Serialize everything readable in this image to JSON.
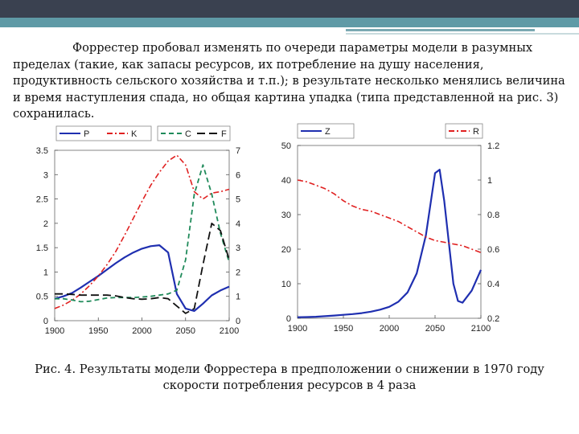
{
  "intro_text": "Форрестер пробовал изменять по очереди параметры модели в разумных пределах (такие, как запасы ресурсов, их потребление на душу населения, продуктивность сельского хозяйства и т.п.); в результате несколько менялись величина и время наступления спада, но общая картина упадка (типа представленной на рис. 3) сохранилась.",
  "caption_line1": "Рис. 4. Результаты модели Форрестера в предположении о снижении в 1970 году",
  "caption_line2": "скорости потребления ресурсов в 4 раза",
  "chart_data": [
    {
      "type": "line",
      "x": [
        1900,
        1910,
        1920,
        1930,
        1940,
        1950,
        1960,
        1970,
        1980,
        1990,
        2000,
        2010,
        2020,
        2030,
        2040,
        2050,
        2060,
        2070,
        2080,
        2090,
        2100
      ],
      "xlim": [
        1900,
        2100
      ],
      "x_ticks": [
        "1900",
        "1950",
        "2000",
        "2050",
        "2100"
      ],
      "ylim_left": [
        0,
        3.5
      ],
      "y_ticks_left": [
        "0",
        "0.5",
        "1",
        "1.5",
        "2",
        "2.5",
        "3",
        "3.5"
      ],
      "ylim_right": [
        0,
        7
      ],
      "y_ticks_right": [
        "0",
        "1",
        "2",
        "3",
        "4",
        "5",
        "6",
        "7"
      ],
      "legend": [
        {
          "name": "P",
          "color": "#1f2fb0",
          "dash": "solid"
        },
        {
          "name": "K",
          "color": "#e02020",
          "dash": "dashdot"
        },
        {
          "name": "C",
          "color": "#1f8a5a",
          "dash": "dashed"
        },
        {
          "name": "F",
          "color": "#111111",
          "dash": "longdash"
        }
      ],
      "series": [
        {
          "name": "P",
          "axis": "left",
          "color": "#1f2fb0",
          "dash": "solid",
          "width": 2.2,
          "values": [
            0.45,
            0.5,
            0.57,
            0.68,
            0.8,
            0.92,
            1.05,
            1.18,
            1.3,
            1.4,
            1.48,
            1.53,
            1.55,
            1.4,
            0.55,
            0.25,
            0.2,
            0.35,
            0.52,
            0.62,
            0.7
          ]
        },
        {
          "name": "K",
          "axis": "left",
          "color": "#e02020",
          "dash": "dashdot",
          "width": 1.6,
          "values": [
            0.25,
            0.32,
            0.42,
            0.55,
            0.72,
            0.92,
            1.15,
            1.42,
            1.75,
            2.1,
            2.45,
            2.78,
            3.05,
            3.28,
            3.4,
            3.2,
            2.65,
            2.5,
            2.62,
            2.65,
            2.7
          ]
        },
        {
          "name": "C",
          "axis": "right",
          "color": "#1f8a5a",
          "dash": "dashed",
          "width": 1.8,
          "values": [
            0.9,
            0.9,
            0.85,
            0.78,
            0.8,
            0.87,
            0.93,
            0.95,
            0.95,
            0.95,
            0.97,
            1.0,
            1.05,
            1.1,
            1.25,
            2.5,
            5.2,
            6.4,
            5.2,
            3.6,
            2.4
          ]
        },
        {
          "name": "F",
          "axis": "right",
          "color": "#111111",
          "dash": "longdash",
          "width": 1.8,
          "values": [
            1.1,
            1.1,
            1.08,
            1.05,
            1.05,
            1.05,
            1.05,
            1.02,
            0.95,
            0.9,
            0.88,
            0.9,
            0.95,
            0.9,
            0.6,
            0.3,
            0.5,
            2.3,
            4.0,
            3.7,
            2.5
          ]
        }
      ]
    },
    {
      "type": "line",
      "x": [
        1900,
        1910,
        1920,
        1930,
        1940,
        1950,
        1960,
        1970,
        1980,
        1990,
        2000,
        2010,
        2020,
        2030,
        2040,
        2045,
        2050,
        2055,
        2060,
        2065,
        2070,
        2075,
        2080,
        2090,
        2100
      ],
      "xlim": [
        1900,
        2100
      ],
      "x_ticks": [
        "1900",
        "1950",
        "2000",
        "2050",
        "2100"
      ],
      "ylim_left": [
        0,
        50
      ],
      "y_ticks_left": [
        "0",
        "10",
        "20",
        "30",
        "40",
        "50"
      ],
      "ylim_right": [
        0.2,
        1.2
      ],
      "y_ticks_right": [
        "0.2",
        "0.4",
        "0.6",
        "0.8",
        "1",
        "1.2"
      ],
      "legend": [
        {
          "name": "Z",
          "color": "#1f2fb0",
          "dash": "solid"
        },
        {
          "name": "R",
          "color": "#e02020",
          "dash": "dashdot"
        }
      ],
      "series": [
        {
          "name": "Z",
          "axis": "left",
          "color": "#1f2fb0",
          "dash": "solid",
          "width": 2.2,
          "values": [
            0.3,
            0.35,
            0.45,
            0.6,
            0.8,
            1.0,
            1.2,
            1.5,
            1.9,
            2.5,
            3.3,
            4.8,
            7.5,
            13,
            24,
            33,
            42,
            43,
            34,
            22,
            10,
            5,
            4.5,
            8,
            14
          ]
        },
        {
          "name": "R",
          "axis": "right",
          "color": "#e02020",
          "dash": "dashdot",
          "width": 1.6,
          "values": [
            1.0,
            0.99,
            0.97,
            0.95,
            0.92,
            0.88,
            0.85,
            0.83,
            0.82,
            0.8,
            0.78,
            0.76,
            0.73,
            0.7,
            0.67,
            0.66,
            0.65,
            0.645,
            0.64,
            0.635,
            0.63,
            0.625,
            0.62,
            0.6,
            0.58
          ]
        }
      ]
    }
  ]
}
